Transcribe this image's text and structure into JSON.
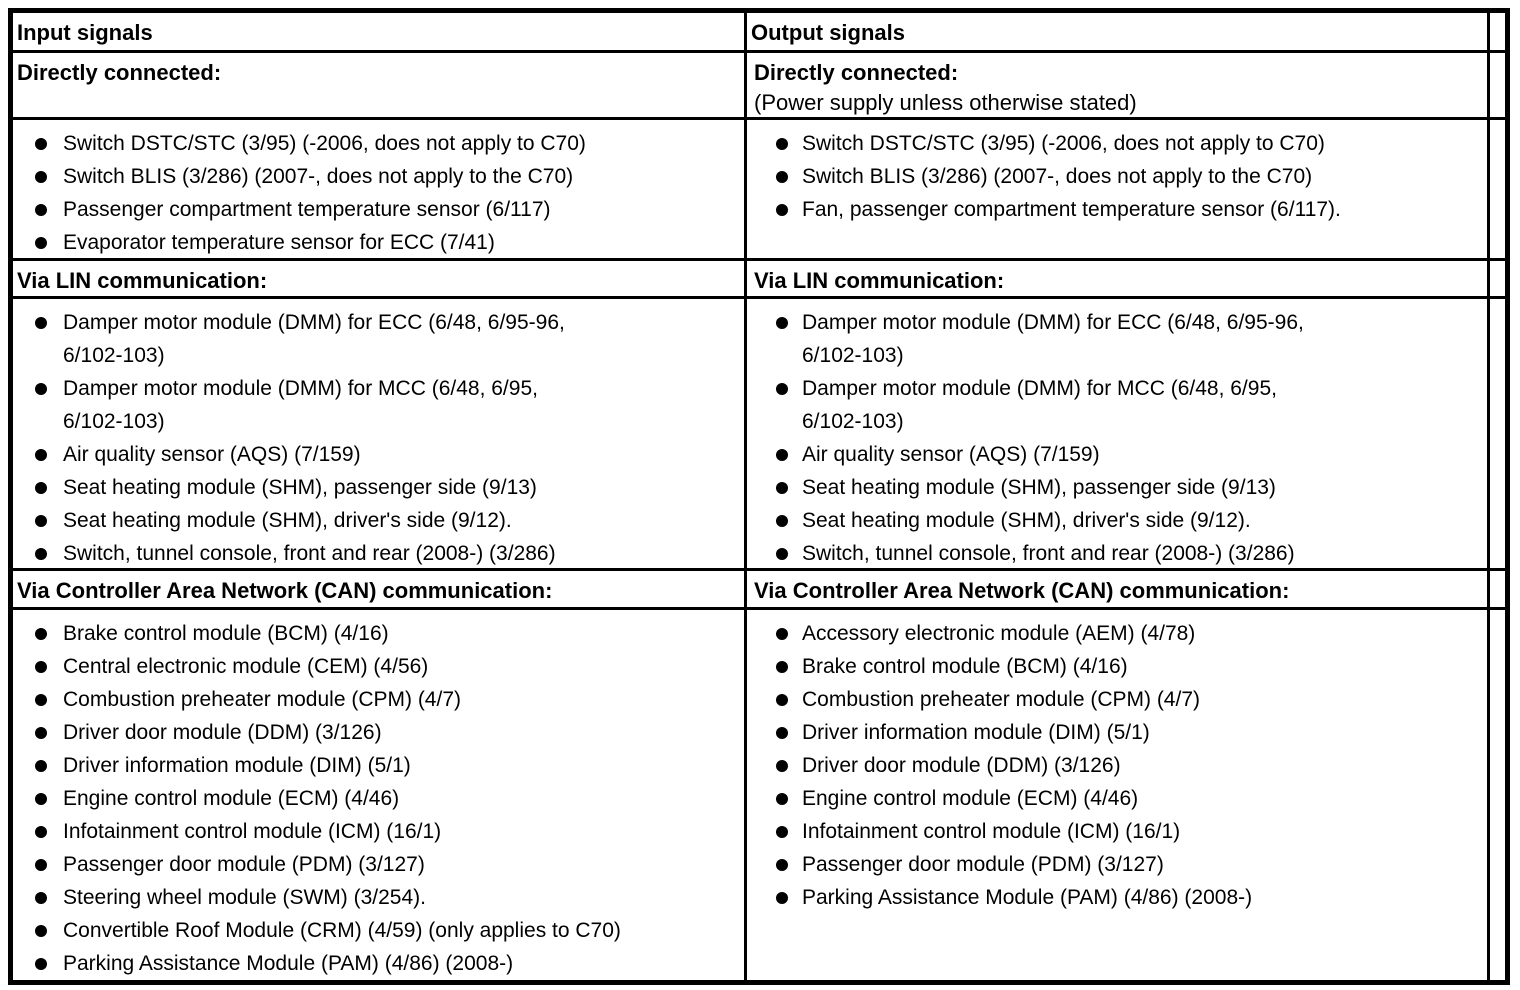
{
  "page": {
    "background_color": "#ffffff",
    "line_color": "#000000"
  },
  "table": {
    "column_headers": {
      "input": "Input signals",
      "output": "Output signals"
    },
    "sections": {
      "directly_connected": {
        "input_title": "Directly connected:",
        "output_title": "Directly connected:",
        "output_subtitle": "(Power supply unless otherwise stated)",
        "input_items": [
          "Switch DSTC/STC (3/95) (-2006, does not apply to C70)",
          "Switch BLIS (3/286) (2007-, does not apply to the C70)",
          "Passenger compartment temperature sensor (6/117)",
          "Evaporator temperature sensor for ECC (7/41)"
        ],
        "output_items": [
          "Switch DSTC/STC (3/95) (-2006, does not apply to C70)",
          "Switch BLIS (3/286) (2007-, does not apply to the C70)",
          "Fan, passenger compartment temperature sensor (6/117)."
        ]
      },
      "lin": {
        "input_title": "Via LIN communication:",
        "output_title": "Via LIN communication:",
        "input_items": [
          "Damper motor module (DMM) for ECC (6/48, 6/95-96,\n6/102-103)",
          "Damper motor module (DMM) for MCC (6/48, 6/95,\n6/102-103)",
          "Air quality sensor (AQS) (7/159)",
          "Seat heating module (SHM), passenger side (9/13)",
          "Seat heating module (SHM), driver's side (9/12).",
          "Switch, tunnel console, front and rear (2008-) (3/286)"
        ],
        "output_items": [
          "Damper motor module (DMM) for ECC (6/48, 6/95-96,\n6/102-103)",
          "Damper motor module (DMM) for MCC (6/48, 6/95,\n6/102-103)",
          "Air quality sensor (AQS) (7/159)",
          "Seat heating module (SHM), passenger side (9/13)",
          "Seat heating module (SHM), driver's side (9/12).",
          "Switch, tunnel console, front and rear (2008-) (3/286)"
        ]
      },
      "can": {
        "input_title": "Via Controller Area Network (CAN) communication:",
        "output_title": "Via Controller Area Network (CAN) communication:",
        "input_items": [
          "Brake control module (BCM) (4/16)",
          "Central electronic module (CEM) (4/56)",
          "Combustion preheater module (CPM) (4/7)",
          "Driver door module (DDM) (3/126)",
          "Driver information module (DIM) (5/1)",
          "Engine control module (ECM) (4/46)",
          "Infotainment control module (ICM) (16/1)",
          "Passenger door module (PDM) (3/127)",
          "Steering wheel module (SWM) (3/254).",
          "Convertible Roof Module (CRM) (4/59) (only applies to C70)",
          "Parking Assistance Module (PAM) (4/86) (2008-)"
        ],
        "output_items": [
          "Accessory electronic module (AEM) (4/78)",
          "Brake control module (BCM) (4/16)",
          "Combustion preheater module (CPM) (4/7)",
          "Driver information module (DIM) (5/1)",
          "Driver door module (DDM) (3/126)",
          "Engine control module (ECM) (4/46)",
          "Infotainment control module (ICM) (16/1)",
          "Passenger door module (PDM) (3/127)",
          "Parking Assistance Module (PAM) (4/86) (2008-)"
        ]
      }
    }
  }
}
